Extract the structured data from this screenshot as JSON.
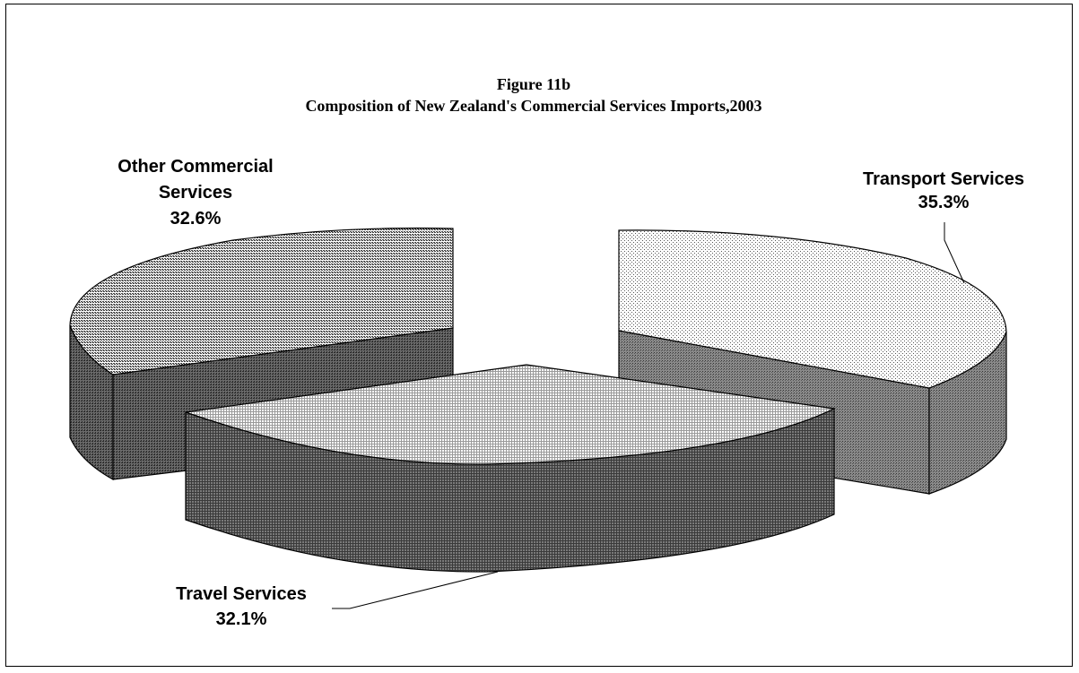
{
  "chart_data": {
    "type": "pie",
    "title": "Figure 11b",
    "subtitle": "Composition of New Zealand's Commercial Services Imports,2003",
    "categories": [
      "Transport Services",
      "Travel Services",
      "Other Commercial Services"
    ],
    "values": [
      35.3,
      32.1,
      32.6
    ],
    "value_labels": [
      "35.3%",
      "32.1%",
      "32.6%"
    ],
    "label_lines": {
      "transport": [
        "Transport Services",
        "35.3%"
      ],
      "travel": [
        "Travel Services",
        "32.1%"
      ],
      "other": [
        "Other Commercial",
        "Services",
        "32.6%"
      ]
    },
    "style": "3d-exploded",
    "legend": "none"
  }
}
